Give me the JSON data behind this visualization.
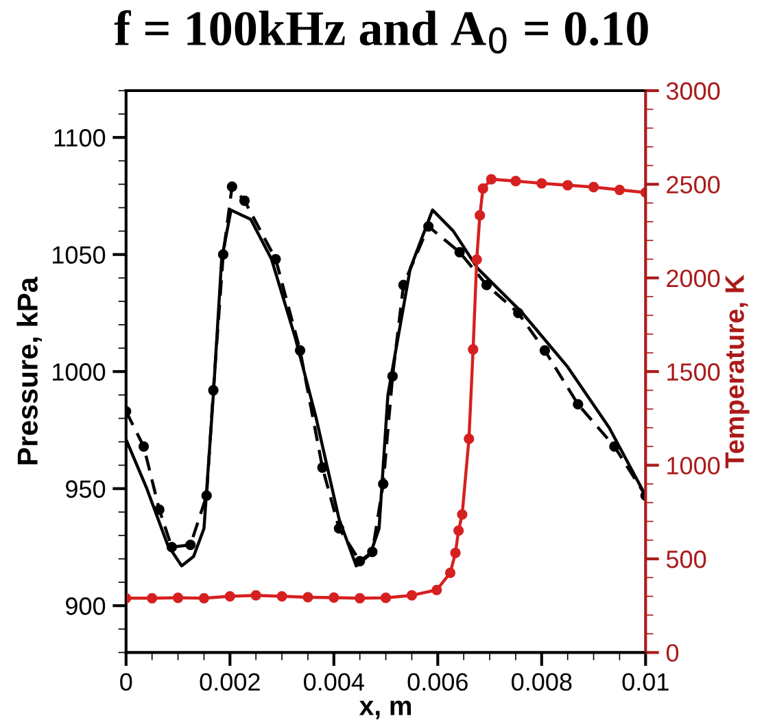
{
  "chart_data": {
    "type": "line",
    "title": "f = 100kHz and A$_{0}$ = 0.10",
    "xlabel": "x, m",
    "ylabel": "Pressure, kPa",
    "y2label": "Temperature, K",
    "xlim": [
      0,
      0.01
    ],
    "xticks": [
      0,
      0.002,
      0.004,
      0.006,
      0.008,
      0.01
    ],
    "ylim": [
      880,
      1120
    ],
    "yticks": [
      900,
      950,
      1000,
      1050,
      1100
    ],
    "y2lim": [
      0,
      3000
    ],
    "y2ticks": [
      0,
      500,
      1000,
      1500,
      2000,
      2500,
      3000
    ],
    "grid": false,
    "legend": false,
    "series": [
      {
        "color": "#000000",
        "line_style": "solid",
        "marker": "none",
        "x": [
          0,
          0.0004,
          0.0008,
          0.00107,
          0.0013,
          0.0015,
          0.00168,
          0.00184,
          0.00202,
          0.0024,
          0.0028,
          0.00325,
          0.00365,
          0.0041,
          0.00443,
          0.0047,
          0.00487,
          0.00504,
          0.00547,
          0.0059,
          0.0063,
          0.00677,
          0.00763,
          0.0085,
          0.0093,
          0.01
        ],
        "values": [
          971,
          950,
          926,
          917,
          921,
          933,
          990,
          1048,
          1069,
          1065,
          1048,
          1015,
          981,
          937,
          917,
          922,
          933,
          990,
          1044,
          1069,
          1060,
          1044,
          1025,
          1002,
          976,
          947
        ]
      },
      {
        "color": "#000000",
        "line_style": "dashed",
        "marker": "circle",
        "x": [
          0,
          0.00034,
          0.00064,
          0.00088,
          0.00124,
          0.00155,
          0.00168,
          0.00187,
          0.00204,
          0.00228,
          0.00288,
          0.00335,
          0.00378,
          0.0041,
          0.0045,
          0.00474,
          0.00495,
          0.00513,
          0.00534,
          0.00582,
          0.00642,
          0.00694,
          0.00755,
          0.00806,
          0.0087,
          0.0094,
          0.01
        ],
        "values": [
          983,
          968,
          941,
          925,
          926,
          947,
          992,
          1050,
          1079,
          1073,
          1048,
          1009,
          959,
          933,
          919,
          923,
          952,
          998,
          1037,
          1062,
          1051,
          1037,
          1025,
          1009,
          986,
          968,
          947
        ]
      },
      {
        "color": "#d62020",
        "line_style": "solid",
        "marker": "circle",
        "axis": "y2",
        "x": [
          0,
          0.0005,
          0.001,
          0.0015,
          0.002,
          0.0025,
          0.003,
          0.0035,
          0.004,
          0.0045,
          0.005,
          0.0055,
          0.00598,
          0.00624,
          0.00634,
          0.0064,
          0.00647,
          0.0066,
          0.00668,
          0.00675,
          0.00681,
          0.00687,
          0.00703,
          0.0075,
          0.008,
          0.0085,
          0.009,
          0.0095,
          0.01
        ],
        "values": [
          290,
          290,
          292,
          290,
          300,
          305,
          300,
          295,
          293,
          290,
          292,
          305,
          334,
          425,
          532,
          651,
          737,
          1141,
          1618,
          2098,
          2334,
          2477,
          2527,
          2517,
          2505,
          2495,
          2485,
          2470,
          2456
        ]
      }
    ]
  }
}
